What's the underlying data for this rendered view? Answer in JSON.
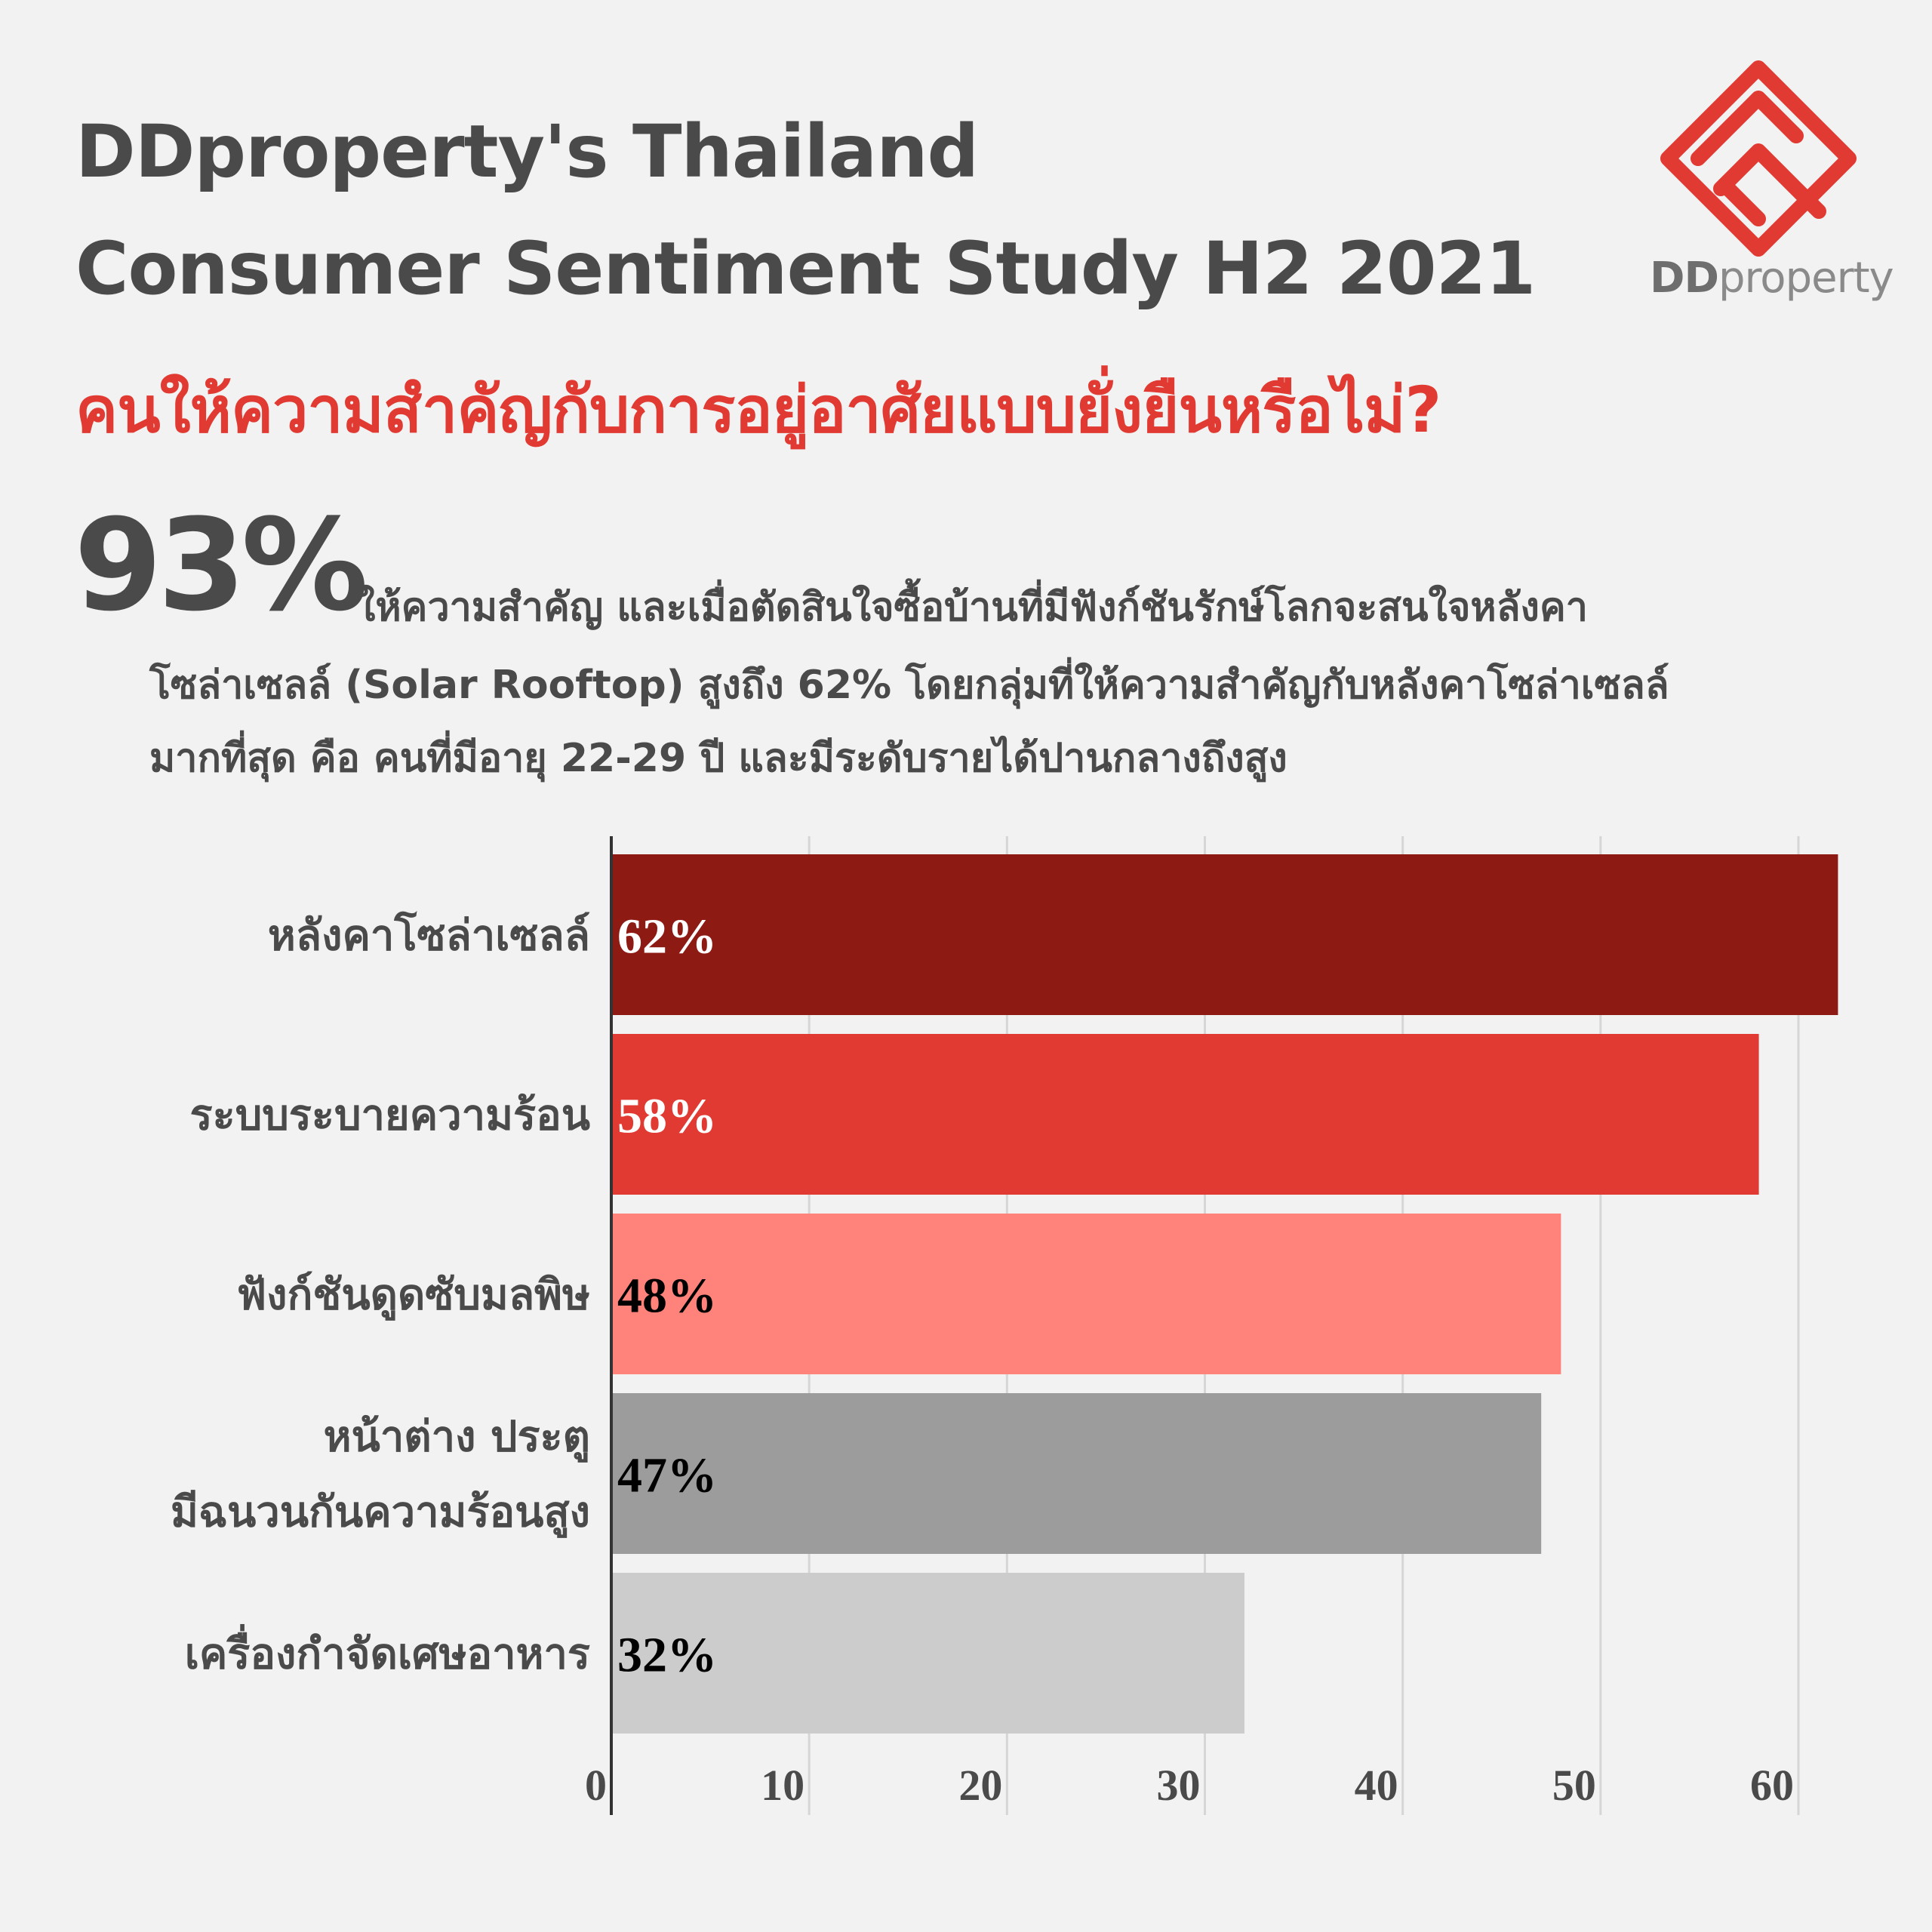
{
  "header": {
    "title_line1": "DDproperty's Thailand",
    "title_line2": "Consumer Sentiment Study H2 2021",
    "question": "คนให้ความสำคัญกับการอยู่อาศัยแบบยั่งยืนหรือไม่?"
  },
  "logo": {
    "text_bold": "DD",
    "text_light": "property",
    "color": "#e03a32"
  },
  "highlight": {
    "stat": "93%",
    "line1": "ให้ความสำคัญ และเมื่อตัดสินใจซื้อบ้านที่มีฟังก์ชันรักษ์โลกจะสนใจหลังคา",
    "line2": "โซล่าเซลล์ (Solar Rooftop) สูงถึง 62% โดยกลุ่มที่ให้ความสำคัญกับหลังคาโซล่าเซลล์",
    "line3": "มากที่สุด คือ คนที่มีอายุ 22-29 ปี และมีระดับรายได้ปานกลางถึงสูง"
  },
  "chart_data": {
    "type": "bar",
    "orientation": "horizontal",
    "categories": [
      [
        "หลังคาโซล่าเซลล์"
      ],
      [
        "ระบบระบายความร้อน"
      ],
      [
        "ฟังก์ชันดูดซับมลพิษ"
      ],
      [
        "หน้าต่าง ประตู",
        "มีฉนวนกันความร้อนสูง"
      ],
      [
        "เครื่องกำจัดเศษอาหาร"
      ]
    ],
    "values": [
      62,
      58,
      48,
      47,
      32
    ],
    "value_labels": [
      "62%",
      "58%",
      "48%",
      "47%",
      "32%"
    ],
    "colors": [
      "#8e1a14",
      "#e03a32",
      "#ff837a",
      "#9c9c9c",
      "#cccccc"
    ],
    "label_colors": [
      "#ffffff",
      "#ffffff",
      "#000000",
      "#000000",
      "#000000"
    ],
    "xlim": [
      0,
      60
    ],
    "xticks": [
      0,
      10,
      20,
      30,
      40,
      50,
      60
    ],
    "grid": true
  }
}
